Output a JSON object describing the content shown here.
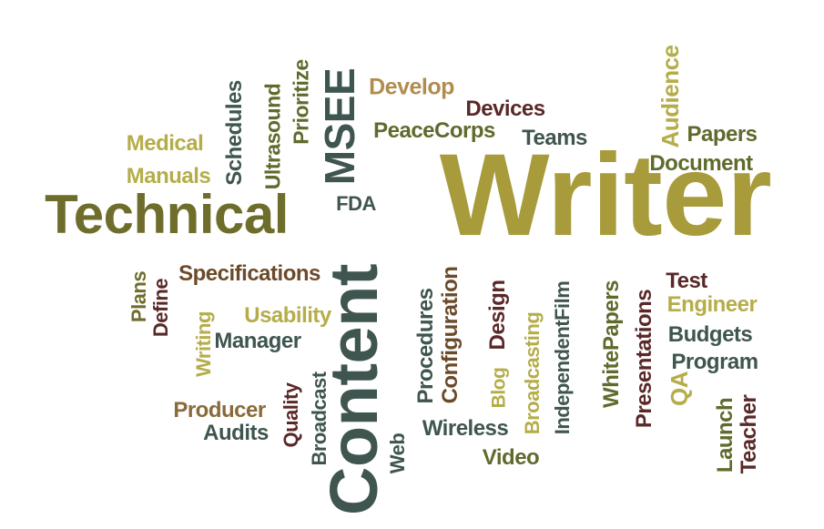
{
  "palette": {
    "gold": "#a89b3c",
    "olive": "#6e6d2c",
    "khaki": "#b5ad4a",
    "slate": "#3f5550",
    "maroon": "#5a2828",
    "brown": "#8a6a3a"
  },
  "words": [
    {
      "text": "Writer",
      "color": "#a89b3c",
      "orient": "h"
    },
    {
      "text": "Technical",
      "color": "#6e6d2c",
      "orient": "h"
    },
    {
      "text": "Content",
      "color": "#3f5550",
      "orient": "v"
    },
    {
      "text": "MSEE",
      "color": "#3f5550",
      "orient": "v"
    },
    {
      "text": "FDA",
      "color": "#3f5550",
      "orient": "h"
    },
    {
      "text": "Develop",
      "color": "#b08d4e",
      "orient": "h"
    },
    {
      "text": "Devices",
      "color": "#5a2828",
      "orient": "h"
    },
    {
      "text": "PeaceCorps",
      "color": "#5f6a2c",
      "orient": "h"
    },
    {
      "text": "Teams",
      "color": "#3f5550",
      "orient": "h"
    },
    {
      "text": "Audience",
      "color": "#b5ad4a",
      "orient": "v"
    },
    {
      "text": "Papers",
      "color": "#5f6a2c",
      "orient": "h"
    },
    {
      "text": "Document",
      "color": "#5f6a2c",
      "orient": "h"
    },
    {
      "text": "Medical",
      "color": "#b5ad4a",
      "orient": "h"
    },
    {
      "text": "Manuals",
      "color": "#b5ad4a",
      "orient": "h"
    },
    {
      "text": "Schedules",
      "color": "#3f5550",
      "orient": "v"
    },
    {
      "text": "Ultrasound",
      "color": "#5f6a2c",
      "orient": "v"
    },
    {
      "text": "Prioritize",
      "color": "#5f6a2c",
      "orient": "v"
    },
    {
      "text": "Specifications",
      "color": "#6b4a2a",
      "orient": "h"
    },
    {
      "text": "Plans",
      "color": "#6e6d2c",
      "orient": "v"
    },
    {
      "text": "Define",
      "color": "#5a2828",
      "orient": "v"
    },
    {
      "text": "Usability",
      "color": "#b5ad4a",
      "orient": "h"
    },
    {
      "text": "Manager",
      "color": "#3f5550",
      "orient": "h"
    },
    {
      "text": "Writing",
      "color": "#b5ad4a",
      "orient": "v"
    },
    {
      "text": "Producer",
      "color": "#8a6a3a",
      "orient": "h"
    },
    {
      "text": "Audits",
      "color": "#3f5550",
      "orient": "h"
    },
    {
      "text": "Quality",
      "color": "#5a2828",
      "orient": "v"
    },
    {
      "text": "Broadcast",
      "color": "#3f5550",
      "orient": "v"
    },
    {
      "text": "Procedures",
      "color": "#3f5550",
      "orient": "v"
    },
    {
      "text": "Configuration",
      "color": "#6b4a2a",
      "orient": "v"
    },
    {
      "text": "Web",
      "color": "#3f5550",
      "orient": "v"
    },
    {
      "text": "Wireless",
      "color": "#3f5550",
      "orient": "h"
    },
    {
      "text": "Video",
      "color": "#5f6a2c",
      "orient": "h"
    },
    {
      "text": "Blog",
      "color": "#b5ad4a",
      "orient": "v"
    },
    {
      "text": "Design",
      "color": "#5a2828",
      "orient": "v"
    },
    {
      "text": "Broadcasting",
      "color": "#b5ad4a",
      "orient": "v"
    },
    {
      "text": "IndependentFilm",
      "color": "#3f5550",
      "orient": "v"
    },
    {
      "text": "WhitePapers",
      "color": "#5f6a2c",
      "orient": "v"
    },
    {
      "text": "Presentations",
      "color": "#5a2828",
      "orient": "v"
    },
    {
      "text": "Test",
      "color": "#5a2828",
      "orient": "h"
    },
    {
      "text": "Engineer",
      "color": "#b5ad4a",
      "orient": "h"
    },
    {
      "text": "Budgets",
      "color": "#3f5550",
      "orient": "h"
    },
    {
      "text": "Program",
      "color": "#3f5550",
      "orient": "h"
    },
    {
      "text": "QA",
      "color": "#b5ad4a",
      "orient": "v"
    },
    {
      "text": "Launch",
      "color": "#5f6a2c",
      "orient": "v"
    },
    {
      "text": "Teacher",
      "color": "#5a2828",
      "orient": "v"
    }
  ]
}
